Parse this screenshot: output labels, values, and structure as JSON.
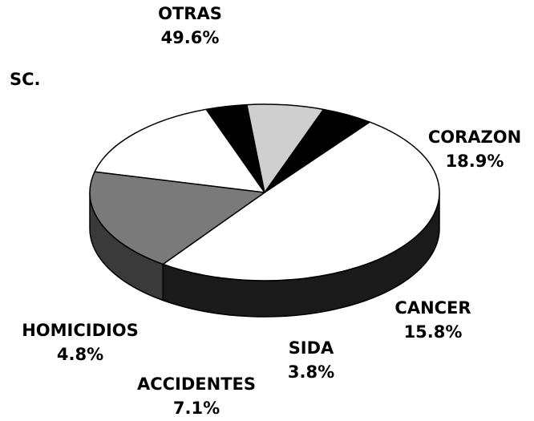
{
  "chart_data": {
    "type": "pie",
    "annotations": [
      "SC."
    ],
    "categories": [
      "OTRAS",
      "CORAZON",
      "CANCER",
      "SIDA",
      "ACCIDENTES",
      "HOMICIDIOS"
    ],
    "values": [
      49.6,
      18.9,
      15.8,
      3.8,
      7.1,
      4.8
    ],
    "value_labels": [
      "49.6%",
      "18.9%",
      "15.8%",
      "3.8%",
      "7.1%",
      "4.8%"
    ],
    "colors": [
      "#ffffff",
      "#7a7a7a",
      "#ffffff",
      "#000000",
      "#cfcfcf",
      "#000000"
    ],
    "side_colors": [
      "#1a1a1a",
      "#3a3a3a",
      "#ffffff",
      "#000000",
      "#8a8a8a",
      "#000000"
    ]
  }
}
